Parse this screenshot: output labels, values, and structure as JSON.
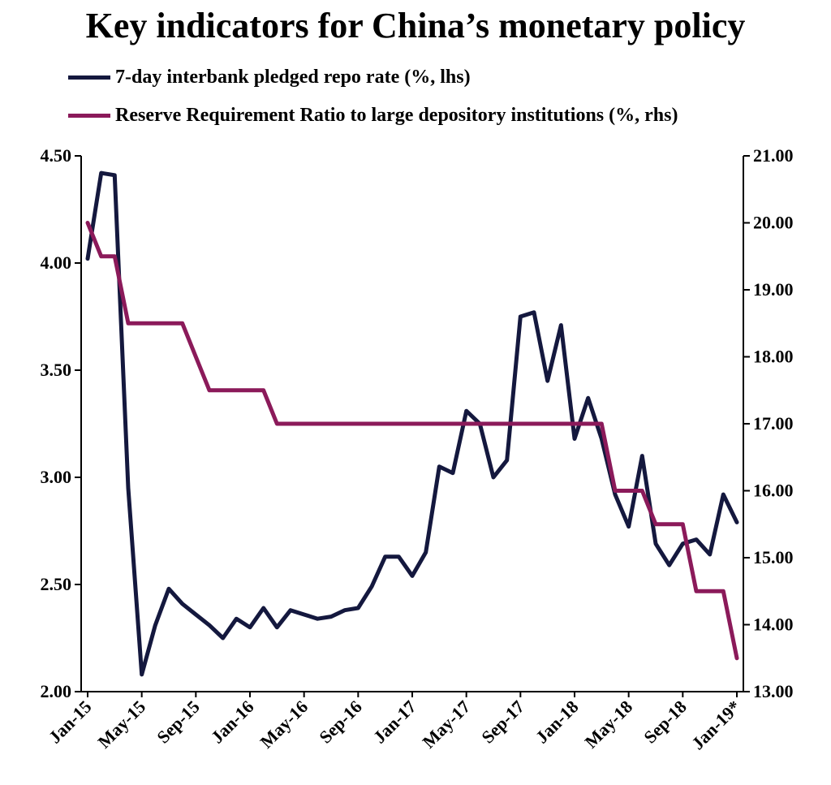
{
  "chart_data": {
    "type": "line",
    "title": "Key indicators for China’s monetary policy",
    "series": [
      {
        "name": "7-day interbank pledged repo rate (%, lhs)",
        "axis": "left",
        "color": "#14183e",
        "values": [
          4.02,
          4.42,
          4.41,
          2.95,
          2.08,
          2.31,
          2.48,
          2.41,
          2.36,
          2.31,
          2.25,
          2.34,
          2.3,
          2.39,
          2.3,
          2.38,
          2.36,
          2.34,
          2.35,
          2.38,
          2.39,
          2.49,
          2.63,
          2.63,
          2.54,
          2.65,
          3.05,
          3.02,
          3.31,
          3.25,
          3.0,
          3.08,
          3.75,
          3.77,
          3.45,
          3.71,
          3.18,
          3.37,
          3.18,
          2.92,
          2.77,
          3.1,
          2.69,
          2.59,
          2.69,
          2.71,
          2.64,
          2.92,
          2.79
        ]
      },
      {
        "name": "Reserve Requirement Ratio to large depository institutions (%, rhs)",
        "axis": "right",
        "color": "#8b1a5a",
        "values": [
          20.0,
          19.5,
          19.5,
          18.5,
          18.5,
          18.5,
          18.5,
          18.5,
          18.0,
          17.5,
          17.5,
          17.5,
          17.5,
          17.5,
          17.0,
          17.0,
          17.0,
          17.0,
          17.0,
          17.0,
          17.0,
          17.0,
          17.0,
          17.0,
          17.0,
          17.0,
          17.0,
          17.0,
          17.0,
          17.0,
          17.0,
          17.0,
          17.0,
          17.0,
          17.0,
          17.0,
          17.0,
          17.0,
          17.0,
          16.0,
          16.0,
          16.0,
          15.5,
          15.5,
          15.5,
          14.5,
          14.5,
          14.5,
          13.5
        ]
      }
    ],
    "x_index_range": [
      0,
      48
    ],
    "x_ticks": [
      {
        "label": "Jan-15",
        "index": 0
      },
      {
        "label": "May-15",
        "index": 4
      },
      {
        "label": "Sep-15",
        "index": 8
      },
      {
        "label": "Jan-16",
        "index": 12
      },
      {
        "label": "May-16",
        "index": 16
      },
      {
        "label": "Sep-16",
        "index": 20
      },
      {
        "label": "Jan-17",
        "index": 24
      },
      {
        "label": "May-17",
        "index": 28
      },
      {
        "label": "Sep-17",
        "index": 32
      },
      {
        "label": "Jan-18",
        "index": 36
      },
      {
        "label": "May-18",
        "index": 40
      },
      {
        "label": "Sep-18",
        "index": 44
      },
      {
        "label": "Jan-19*",
        "index": 48
      }
    ],
    "y_left": {
      "range": [
        2.0,
        4.5
      ],
      "ticks": [
        "2.00",
        "2.50",
        "3.00",
        "3.50",
        "4.00",
        "4.50"
      ]
    },
    "y_right": {
      "range": [
        13.0,
        21.0
      ],
      "ticks": [
        "13.00",
        "14.00",
        "15.00",
        "16.00",
        "17.00",
        "18.00",
        "19.00",
        "20.00",
        "21.00"
      ]
    },
    "legend": "top-left",
    "grid": false,
    "xlabel": "",
    "ylabel": ""
  }
}
